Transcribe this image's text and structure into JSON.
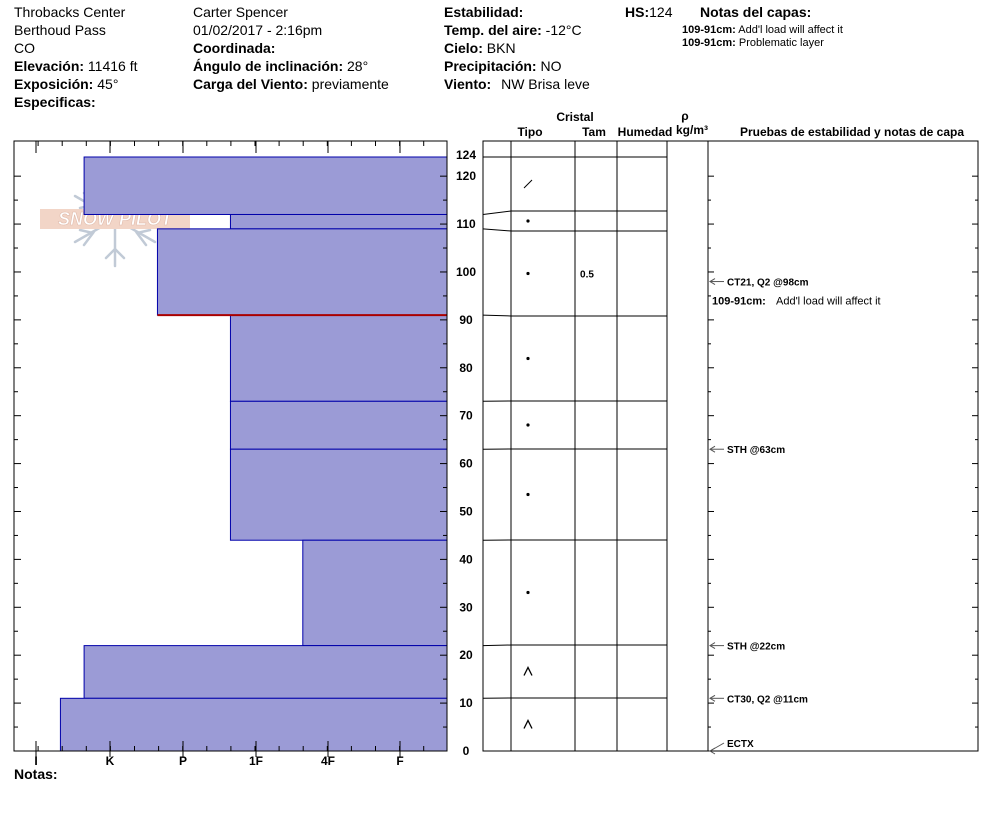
{
  "header": {
    "location": "Throbacks Center",
    "area": "Berthoud Pass",
    "state": "CO",
    "elevation_label": "Elevación:",
    "elevation_value": "11416 ft",
    "aspect_label": "Exposición:",
    "aspect_value": "45°",
    "specifics_label": "Especificas:",
    "observer": "Carter Spencer",
    "datetime": "01/02/2017 - 2:16pm",
    "coord_label": "Coordinada:",
    "slope_label": "Ángulo de inclinación:",
    "slope_value": "28°",
    "wind_load_label": "Carga del Viento:",
    "wind_load_value": "previamente",
    "stability_label": "Estabilidad:",
    "air_temp_label": "Temp. del aire:",
    "air_temp_value": "-12°C",
    "sky_label": "Cielo:",
    "sky_value": "BKN",
    "precip_label": "Precipitación:",
    "precip_value": "NO",
    "wind_label": "Viento:",
    "wind_value": "NW Brisa leve",
    "hs_label": "HS:",
    "hs_value": "124",
    "layer_notes_label": "Notas del capas:",
    "layer_notes": [
      {
        "range": "109-91cm:",
        "text": "Add'l load will affect it"
      },
      {
        "range": "109-91cm:",
        "text": "Problematic layer"
      }
    ],
    "notes_label": "Notas:"
  },
  "logo": {
    "text": "SNOW PILOT"
  },
  "columns": {
    "crystal": "Cristal",
    "type": "Tipo",
    "size": "Tam",
    "moisture": "Humedad",
    "rho": "ρ",
    "density_unit": "kg/m³",
    "tests": "Pruebas de estabilidad y notas de capa"
  },
  "colors": {
    "layer_fill": "#9b9bd6",
    "layer_stroke": "#0000aa",
    "weak_line": "#aa0000",
    "frame": "#000000"
  },
  "chart_data": {
    "type": "snow_profile",
    "total_depth": 124,
    "y_axis": {
      "min": 0,
      "max": 124,
      "major_ticks": [
        0,
        10,
        20,
        30,
        40,
        50,
        60,
        70,
        80,
        90,
        100,
        110,
        120,
        124
      ]
    },
    "hardness_scale": [
      "I",
      "K",
      "P",
      "1F",
      "4F",
      "F"
    ],
    "layers": [
      {
        "top": 124,
        "bottom": 112,
        "hardness_index": 0.65,
        "symbol": "partly-decomposed",
        "size": "",
        "symbol_depth": 118
      },
      {
        "top": 112,
        "bottom": 109,
        "hardness_index": 2.65,
        "symbol": "rounded",
        "size": "",
        "symbol_depth": 110.5
      },
      {
        "top": 109,
        "bottom": 91,
        "hardness_index": 1.65,
        "symbol": "rounded",
        "size": "0.5",
        "symbol_depth": 100
      },
      {
        "top": 91,
        "bottom": 73,
        "hardness_index": 2.65,
        "symbol": "rounded",
        "size": "",
        "symbol_depth": 82
      },
      {
        "top": 73,
        "bottom": 63,
        "hardness_index": 2.65,
        "symbol": "rounded",
        "size": "",
        "symbol_depth": 68
      },
      {
        "top": 63,
        "bottom": 44,
        "hardness_index": 2.65,
        "symbol": "rounded",
        "size": "",
        "symbol_depth": 53.5
      },
      {
        "top": 44,
        "bottom": 22,
        "hardness_index": 3.65,
        "symbol": "rounded",
        "size": "",
        "symbol_depth": 33
      },
      {
        "top": 22,
        "bottom": 11,
        "hardness_index": 0.65,
        "symbol": "depth-hoar",
        "size": "",
        "symbol_depth": 16.5
      },
      {
        "top": 11,
        "bottom": 0,
        "hardness_index": 0.33,
        "symbol": "depth-hoar",
        "size": "",
        "symbol_depth": 5.5
      }
    ],
    "weak_layer_depth": 91,
    "tests": [
      {
        "depth": 98,
        "label": "CT21, Q2 @98cm"
      },
      {
        "depth": 63,
        "label": "STH @63cm"
      },
      {
        "depth": 22,
        "label": "STH @22cm"
      },
      {
        "depth": 11,
        "label": "CT30, Q2 @11cm"
      },
      {
        "depth": 0,
        "label": "ECTX"
      }
    ],
    "layer_notes": [
      {
        "depth": 94,
        "range": "109-91cm:",
        "text": "Add'l load will affect it"
      }
    ]
  }
}
